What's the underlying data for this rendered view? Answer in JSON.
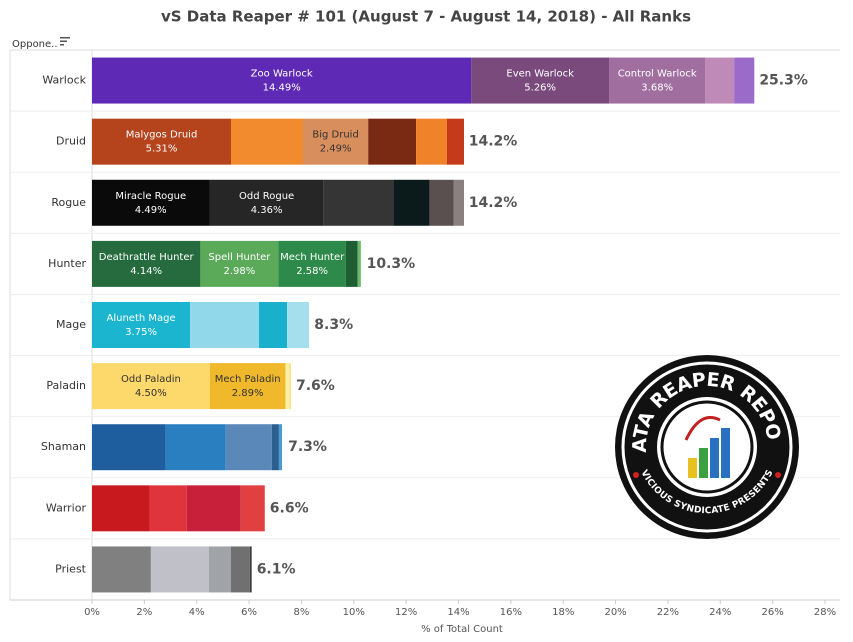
{
  "chart_data": {
    "type": "stacked-bar-horizontal",
    "title": "vS Data Reaper # 101 (August 7 - August 14, 2018) - All Ranks",
    "row_header": "Oppone..",
    "xlabel": "% of Total Count",
    "xlim": [
      0,
      28
    ],
    "xticks": [
      {
        "value": 0,
        "label": "0%"
      },
      {
        "value": 2,
        "label": "2%"
      },
      {
        "value": 4,
        "label": "4%"
      },
      {
        "value": 6,
        "label": "6%"
      },
      {
        "value": 8,
        "label": "8%"
      },
      {
        "value": 10,
        "label": "10%"
      },
      {
        "value": 12,
        "label": "12%"
      },
      {
        "value": 14,
        "label": "14%"
      },
      {
        "value": 16,
        "label": "16%"
      },
      {
        "value": 18,
        "label": "18%"
      },
      {
        "value": 20,
        "label": "20%"
      },
      {
        "value": 22,
        "label": "22%"
      },
      {
        "value": 24,
        "label": "24%"
      },
      {
        "value": 26,
        "label": "26%"
      },
      {
        "value": 28,
        "label": "28%"
      }
    ],
    "grid": false,
    "rows": [
      {
        "category": "Warlock",
        "total": 25.3,
        "total_label": "25.3%",
        "segments": [
          {
            "name": "Zoo Warlock",
            "value": 14.49,
            "value_label": "14.49%",
            "color": "#5e2ab5"
          },
          {
            "name": "Even Warlock",
            "value": 5.26,
            "value_label": "5.26%",
            "color": "#7a4a7d"
          },
          {
            "name": "Control Warlock",
            "value": 3.68,
            "value_label": "3.68%",
            "color": "#a06f9f"
          },
          {
            "value": 1.1,
            "color": "#c08ab8"
          },
          {
            "value": 0.77,
            "color": "#9b6bc9"
          }
        ]
      },
      {
        "category": "Druid",
        "total": 14.2,
        "total_label": "14.2%",
        "segments": [
          {
            "name": "Malygos Druid",
            "value": 5.31,
            "value_label": "5.31%",
            "color": "#b5441d"
          },
          {
            "value": 2.75,
            "color": "#f28a2e"
          },
          {
            "name": "Big Druid",
            "value": 2.49,
            "value_label": "2.49%",
            "color": "#d98e5d"
          },
          {
            "value": 1.83,
            "color": "#7a2a12"
          },
          {
            "value": 1.18,
            "color": "#f0822a"
          },
          {
            "value": 0.65,
            "color": "#c43a1a"
          }
        ]
      },
      {
        "category": "Rogue",
        "total": 14.2,
        "total_label": "14.2%",
        "segments": [
          {
            "name": "Miracle Rogue",
            "value": 4.49,
            "value_label": "4.49%",
            "color": "#0a0a0a"
          },
          {
            "name": "Odd Rogue",
            "value": 4.36,
            "value_label": "4.36%",
            "color": "#262626"
          },
          {
            "value": 2.67,
            "color": "#353535"
          },
          {
            "value": 1.37,
            "color": "#0b1a1a"
          },
          {
            "value": 0.92,
            "color": "#5b5050"
          },
          {
            "value": 0.4,
            "color": "#8a8080"
          }
        ]
      },
      {
        "category": "Hunter",
        "total": 10.3,
        "total_label": "10.3%",
        "segments": [
          {
            "name": "Deathrattle Hunter",
            "value": 4.14,
            "value_label": "4.14%",
            "color": "#256b3e"
          },
          {
            "name": "Spell Hunter",
            "value": 2.98,
            "value_label": "2.98%",
            "color": "#5aaa5a"
          },
          {
            "name": "Mech Hunter",
            "value": 2.58,
            "value_label": "2.58%",
            "color": "#2d8a4a"
          },
          {
            "value": 0.45,
            "color": "#1e5e32"
          },
          {
            "value": 0.12,
            "color": "#6cba6c"
          }
        ]
      },
      {
        "category": "Mage",
        "total": 8.3,
        "total_label": "8.3%",
        "segments": [
          {
            "name": "Aluneth Mage",
            "value": 3.75,
            "value_label": "3.75%",
            "color": "#1bb5cf"
          },
          {
            "value": 2.63,
            "color": "#90d8ea"
          },
          {
            "value": 1.07,
            "color": "#1aafcb"
          },
          {
            "value": 0.84,
            "color": "#a5dfee"
          }
        ]
      },
      {
        "category": "Paladin",
        "total": 7.6,
        "total_label": "7.6%",
        "segments": [
          {
            "name": "Odd Paladin",
            "value": 4.5,
            "value_label": "4.50%",
            "color": "#fdd86a"
          },
          {
            "name": "Mech Paladin",
            "value": 2.89,
            "value_label": "2.89%",
            "color": "#f0b82b"
          },
          {
            "value": 0.14,
            "color": "#fff0a0"
          },
          {
            "value": 0.07,
            "color": "#f7e08a"
          }
        ]
      },
      {
        "category": "Shaman",
        "total": 7.3,
        "total_label": "7.3%",
        "segments": [
          {
            "value": 2.82,
            "color": "#1f5e9e"
          },
          {
            "value": 2.29,
            "color": "#2a7fc0"
          },
          {
            "value": 1.76,
            "color": "#5a88b8"
          },
          {
            "value": 0.27,
            "color": "#2a5f90"
          },
          {
            "value": 0.12,
            "color": "#4a9ad0"
          }
        ]
      },
      {
        "category": "Warrior",
        "total": 6.6,
        "total_label": "6.6%",
        "segments": [
          {
            "value": 2.21,
            "color": "#c8191f"
          },
          {
            "value": 1.41,
            "color": "#e0343c"
          },
          {
            "value": 2.06,
            "color": "#c8203a"
          },
          {
            "value": 0.92,
            "color": "#e04040"
          }
        ]
      },
      {
        "category": "Priest",
        "total": 6.1,
        "total_label": "6.1%",
        "segments": [
          {
            "value": 2.25,
            "color": "#808080"
          },
          {
            "value": 2.21,
            "color": "#c0c0c8"
          },
          {
            "value": 0.84,
            "color": "#a0a4a8"
          },
          {
            "value": 0.73,
            "color": "#707070"
          },
          {
            "value": 0.07,
            "color": "#404040"
          }
        ]
      }
    ]
  },
  "logo": {
    "title": "DATA REAPER REPORT",
    "subtitle": "VICIOUS SYNDICATE PRESENTS"
  }
}
